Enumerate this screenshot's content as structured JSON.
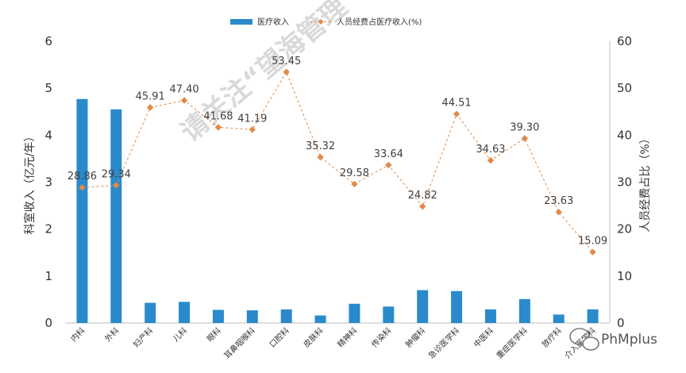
{
  "chart_data": {
    "type": "bar+line",
    "categories": [
      "内科",
      "外科",
      "妇产科",
      "儿科",
      "眼科",
      "耳鼻咽喉科",
      "口腔科",
      "皮肤科",
      "精神科",
      "传染科",
      "肿瘤科",
      "急诊医学科",
      "中医科",
      "重症医学科",
      "放疗科",
      "介入医学科"
    ],
    "series": [
      {
        "name": "医疗收入",
        "type": "bar",
        "axis": "left",
        "color": "#2a8acb",
        "values": [
          4.77,
          4.55,
          0.43,
          0.45,
          0.28,
          0.27,
          0.29,
          0.16,
          0.41,
          0.35,
          0.7,
          0.68,
          0.29,
          0.51,
          0.18,
          0.29
        ]
      },
      {
        "name": "人员经费占医疗收入(%)",
        "type": "line",
        "axis": "right",
        "color": "#e08a4a",
        "values": [
          28.86,
          29.34,
          45.91,
          47.4,
          41.68,
          41.19,
          53.45,
          35.32,
          29.58,
          33.64,
          24.82,
          44.51,
          34.63,
          39.3,
          23.63,
          15.09
        ],
        "labels": [
          "28.86",
          "29.34",
          "45.91",
          "47.40",
          "41.68",
          "41.19",
          "53.45",
          "35.32",
          "29.58",
          "33.64",
          "24.82",
          "44.51",
          "34.63",
          "39.30",
          "23.63",
          "15.09"
        ]
      }
    ],
    "ylabel": "科室收入（亿元/年）",
    "y2label": "人员经费占比（%）",
    "ylim": [
      0,
      6
    ],
    "y2lim": [
      0,
      60
    ],
    "yticks": [
      "0",
      "1",
      "2",
      "3",
      "4",
      "5",
      "6"
    ],
    "y2ticks": [
      "0",
      "10",
      "20",
      "30",
      "40",
      "50",
      "60"
    ],
    "grid": false,
    "legend_position": "top"
  },
  "watermark": "请关注“望海管理",
  "brand": {
    "name": "PhMplus",
    "icon": "wechat-icon"
  }
}
